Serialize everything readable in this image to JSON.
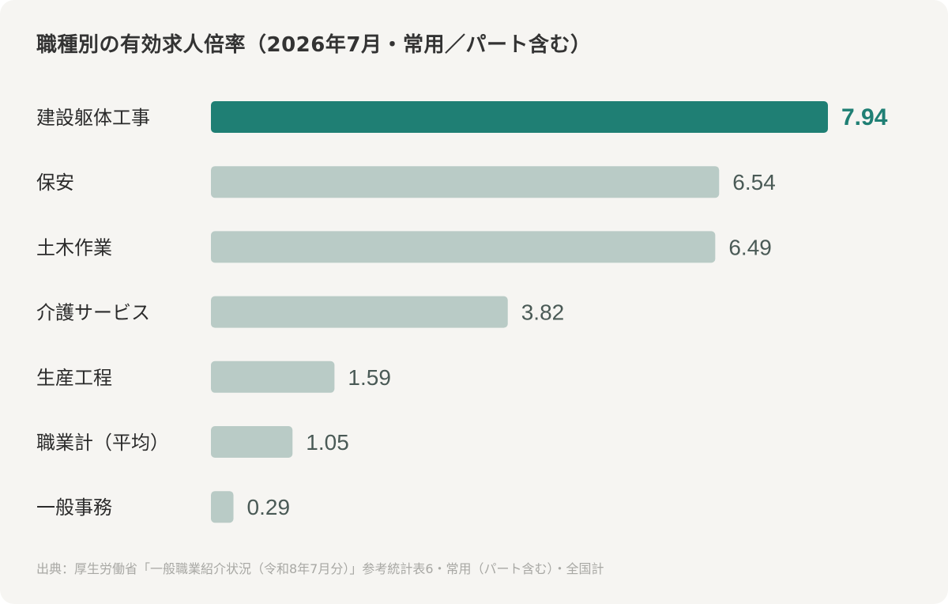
{
  "title": "職種別の有効求人倍率（2026年7月・常用／パート含む）",
  "source": "出典：厚生労働省「一般職業紹介状況（令和8年7月分）」参考統計表6・常用（パート含む）・全国計",
  "colors": {
    "highlight_bar": "#1f7f74",
    "highlight_text": "#1f7f74",
    "bar": "#b9cbc6",
    "label_text": "#2b2b2b",
    "value_text": "#4a5a56",
    "background": "#f6f5f2"
  },
  "chart_data": {
    "type": "bar",
    "orientation": "horizontal",
    "categories": [
      "建設躯体工事",
      "保安",
      "土木作業",
      "介護サービス",
      "生産工程",
      "職業計（平均）",
      "一般事務"
    ],
    "values": [
      7.94,
      6.54,
      6.49,
      3.82,
      1.59,
      1.05,
      0.29
    ],
    "value_labels": [
      "7.94",
      "6.54",
      "6.49",
      "3.82",
      "1.59",
      "1.05",
      "0.29"
    ],
    "highlighted_index": 0,
    "xlim": [
      0,
      7.94
    ],
    "grid": false,
    "legend": "none"
  }
}
